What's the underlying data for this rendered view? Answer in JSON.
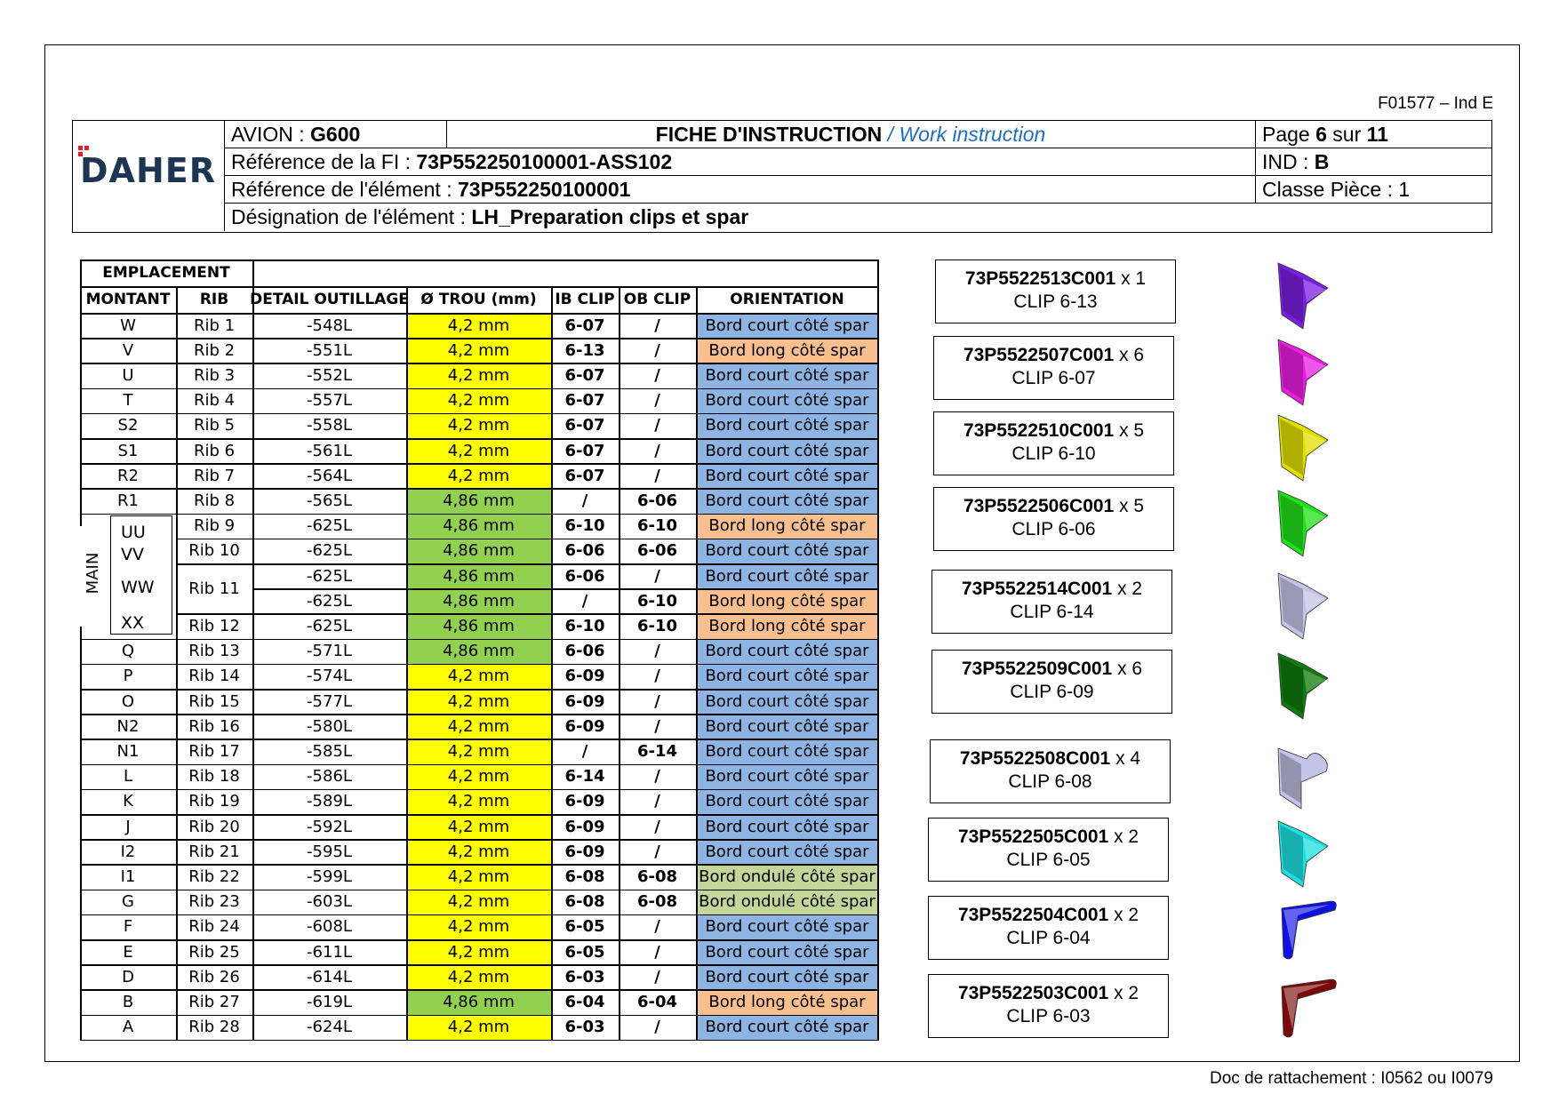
{
  "doc_ref": "F01577 – Ind E",
  "footer_ref": "Doc de rattachement : I0562 ou I0079",
  "header": {
    "logo": "DAHER",
    "avion_label": "AVION : ",
    "avion_value": "G600",
    "title_fr": "FICHE D'INSTRUCTION",
    "title_en": " / Work instruction",
    "page_prefix": "Page ",
    "page_num": "6",
    "page_mid": " sur ",
    "page_total": "11",
    "ref_fi_label": "Référence de la FI : ",
    "ref_fi_value": "73P552250100001-ASS102",
    "ind_label": "IND : ",
    "ind_value": "B",
    "ref_el_label": "Référence de l'élément : ",
    "ref_el_value": "73P552250100001",
    "classe": "Classe Pièce : 1",
    "desig_label": "Désignation de l'élément : ",
    "desig_value": "LH_Preparation clips et spar"
  },
  "table": {
    "group_header": "EMPLACEMENT",
    "columns": [
      "MONTANT",
      "RIB",
      "DETAIL OUTILLAGE",
      "Ø TROU (mm)",
      "IB CLIP",
      "OB CLIP",
      "ORIENTATION"
    ],
    "main_label": "MAIN",
    "main_codes": [
      "UU",
      "VV",
      "WW",
      "XX"
    ],
    "rows": [
      {
        "montant": "W",
        "rib": "Rib 1",
        "detail": "-548L",
        "trou": "4,2 mm",
        "ib": "6-07",
        "ob": "/",
        "orientation": "Bord court côté spar"
      },
      {
        "montant": "V",
        "rib": "Rib 2",
        "detail": "-551L",
        "trou": "4,2 mm",
        "ib": "6-13",
        "ob": "/",
        "orientation": "Bord long côté spar"
      },
      {
        "montant": "U",
        "rib": "Rib 3",
        "detail": "-552L",
        "trou": "4,2 mm",
        "ib": "6-07",
        "ob": "/",
        "orientation": "Bord court côté spar"
      },
      {
        "montant": "T",
        "rib": "Rib 4",
        "detail": "-557L",
        "trou": "4,2 mm",
        "ib": "6-07",
        "ob": "/",
        "orientation": "Bord court côté spar"
      },
      {
        "montant": "S2",
        "rib": "Rib 5",
        "detail": "-558L",
        "trou": "4,2 mm",
        "ib": "6-07",
        "ob": "/",
        "orientation": "Bord court côté spar"
      },
      {
        "montant": "S1",
        "rib": "Rib 6",
        "detail": "-561L",
        "trou": "4,2 mm",
        "ib": "6-07",
        "ob": "/",
        "orientation": "Bord court côté spar"
      },
      {
        "montant": "R2",
        "rib": "Rib 7",
        "detail": "-564L",
        "trou": "4,2 mm",
        "ib": "6-07",
        "ob": "/",
        "orientation": "Bord court côté spar"
      },
      {
        "montant": "R1",
        "rib": "Rib 8",
        "detail": "-565L",
        "trou": "4,86 mm",
        "ib": "/",
        "ob": "6-06",
        "orientation": "Bord court côté spar"
      },
      {
        "montant": "",
        "rib": "Rib 9",
        "detail": "-625L",
        "trou": "4,86 mm",
        "ib": "6-10",
        "ob": "6-10",
        "orientation": "Bord long côté spar"
      },
      {
        "montant": "",
        "rib": "Rib 10",
        "detail": "-625L",
        "trou": "4,86 mm",
        "ib": "6-06",
        "ob": "6-06",
        "orientation": "Bord court côté spar"
      },
      {
        "montant": "",
        "rib": "Rib 11",
        "detail": "-625L",
        "trou": "4,86 mm",
        "ib": "6-06",
        "ob": "/",
        "orientation": "Bord court côté spar"
      },
      {
        "montant": "",
        "rib": "",
        "detail": "-625L",
        "trou": "4,86 mm",
        "ib": "/",
        "ob": "6-10",
        "orientation": "Bord long côté spar"
      },
      {
        "montant": "",
        "rib": "Rib 12",
        "detail": "-625L",
        "trou": "4,86 mm",
        "ib": "6-10",
        "ob": "6-10",
        "orientation": "Bord long côté spar"
      },
      {
        "montant": "Q",
        "rib": "Rib 13",
        "detail": "-571L",
        "trou": "4,86 mm",
        "ib": "6-06",
        "ob": "/",
        "orientation": "Bord court côté spar"
      },
      {
        "montant": "P",
        "rib": "Rib 14",
        "detail": "-574L",
        "trou": "4,2 mm",
        "ib": "6-09",
        "ob": "/",
        "orientation": "Bord court côté spar"
      },
      {
        "montant": "O",
        "rib": "Rib 15",
        "detail": "-577L",
        "trou": "4,2 mm",
        "ib": "6-09",
        "ob": "/",
        "orientation": "Bord court côté spar"
      },
      {
        "montant": "N2",
        "rib": "Rib 16",
        "detail": "-580L",
        "trou": "4,2 mm",
        "ib": "6-09",
        "ob": "/",
        "orientation": "Bord court côté spar"
      },
      {
        "montant": "N1",
        "rib": "Rib 17",
        "detail": "-585L",
        "trou": "4,2 mm",
        "ib": "/",
        "ob": "6-14",
        "orientation": "Bord court côté spar"
      },
      {
        "montant": "L",
        "rib": "Rib 18",
        "detail": "-586L",
        "trou": "4,2 mm",
        "ib": "6-14",
        "ob": "/",
        "orientation": "Bord court côté spar"
      },
      {
        "montant": "K",
        "rib": "Rib 19",
        "detail": "-589L",
        "trou": "4,2 mm",
        "ib": "6-09",
        "ob": "/",
        "orientation": "Bord court côté spar"
      },
      {
        "montant": "J",
        "rib": "Rib 20",
        "detail": "-592L",
        "trou": "4,2 mm",
        "ib": "6-09",
        "ob": "/",
        "orientation": "Bord court côté spar"
      },
      {
        "montant": "I2",
        "rib": "Rib 21",
        "detail": "-595L",
        "trou": "4,2 mm",
        "ib": "6-09",
        "ob": "/",
        "orientation": "Bord court côté spar"
      },
      {
        "montant": "I1",
        "rib": "Rib 22",
        "detail": "-599L",
        "trou": "4,2 mm",
        "ib": "6-08",
        "ob": "6-08",
        "orientation": "Bord ondulé côté spar"
      },
      {
        "montant": "G",
        "rib": "Rib 23",
        "detail": "-603L",
        "trou": "4,2 mm",
        "ib": "6-08",
        "ob": "6-08",
        "orientation": "Bord ondulé côté spar"
      },
      {
        "montant": "F",
        "rib": "Rib 24",
        "detail": "-608L",
        "trou": "4,2 mm",
        "ib": "6-05",
        "ob": "/",
        "orientation": "Bord court côté spar"
      },
      {
        "montant": "E",
        "rib": "Rib 25",
        "detail": "-611L",
        "trou": "4,2 mm",
        "ib": "6-05",
        "ob": "/",
        "orientation": "Bord court côté spar"
      },
      {
        "montant": "D",
        "rib": "Rib 26",
        "detail": "-614L",
        "trou": "4,2 mm",
        "ib": "6-03",
        "ob": "/",
        "orientation": "Bord court côté spar"
      },
      {
        "montant": "B",
        "rib": "Rib 27",
        "detail": "-619L",
        "trou": "4,86 mm",
        "ib": "6-04",
        "ob": "6-04",
        "orientation": "Bord long côté spar"
      },
      {
        "montant": "A",
        "rib": "Rib 28",
        "detail": "-624L",
        "trou": "4,2 mm",
        "ib": "6-03",
        "ob": "/",
        "orientation": "Bord court côté spar"
      }
    ]
  },
  "clips": [
    {
      "pn": "73P5522513C001",
      "qty": " x 1",
      "name": "CLIP 6-13",
      "color": "#7a1fe0",
      "shape": "angle"
    },
    {
      "pn": "73P5522507C001",
      "qty": " x 6",
      "name": "CLIP 6-07",
      "color": "#e81ee0",
      "shape": "angle"
    },
    {
      "pn": "73P5522510C001",
      "qty": " x 5",
      "name": "CLIP 6-10",
      "color": "#e0e000",
      "shape": "angle"
    },
    {
      "pn": "73P5522506C001",
      "qty": " x 5",
      "name": "CLIP 6-06",
      "color": "#22e01a",
      "shape": "angle"
    },
    {
      "pn": "73P5522514C001",
      "qty": " x 2",
      "name": "CLIP 6-14",
      "color": "#c4c4e8",
      "shape": "angle"
    },
    {
      "pn": "73P5522509C001",
      "qty": " x 6",
      "name": "CLIP 6-09",
      "color": "#0f7a0f",
      "shape": "angle"
    },
    {
      "pn": "73P5522508C001",
      "qty": " x 4",
      "name": "CLIP 6-08",
      "color": "#c4c4e8",
      "shape": "wave"
    },
    {
      "pn": "73P5522505C001",
      "qty": " x 2",
      "name": "CLIP 6-05",
      "color": "#1ee0e0",
      "shape": "angle"
    },
    {
      "pn": "73P5522504C001",
      "qty": " x 2",
      "name": "CLIP 6-04",
      "color": "#1010e0",
      "shape": "flat"
    },
    {
      "pn": "73P5522503C001",
      "qty": " x 2",
      "name": "CLIP 6-03",
      "color": "#7a0a0a",
      "shape": "flat"
    }
  ]
}
